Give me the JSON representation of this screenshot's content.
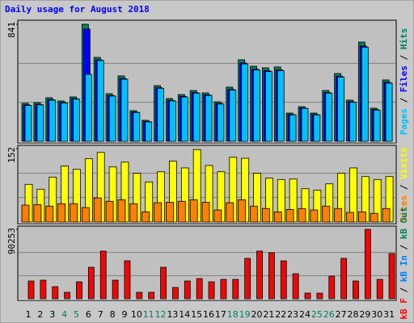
{
  "chart_data": {
    "type": "bar",
    "title": "Daily usage for August 2018",
    "legend_separator": " / ",
    "categories": [
      "1",
      "2",
      "3",
      "4",
      "5",
      "6",
      "7",
      "8",
      "9",
      "10",
      "11",
      "12",
      "13",
      "14",
      "15",
      "16",
      "17",
      "18",
      "19",
      "20",
      "21",
      "22",
      "23",
      "24",
      "25",
      "26",
      "27",
      "28",
      "29",
      "30",
      "31"
    ],
    "category_colors": [
      "#000000",
      "#000000",
      "#000000",
      "#00805c",
      "#00805c",
      "#000000",
      "#000000",
      "#000000",
      "#000000",
      "#000000",
      "#00805c",
      "#00805c",
      "#000000",
      "#000000",
      "#000000",
      "#000000",
      "#000000",
      "#00805c",
      "#00805c",
      "#000000",
      "#000000",
      "#000000",
      "#000000",
      "#000000",
      "#00805c",
      "#00805c",
      "#000000",
      "#000000",
      "#000000",
      "#000000",
      "#000000"
    ],
    "panels": [
      {
        "ylim": [
          0,
          841
        ],
        "yticks": [
          841
        ],
        "series": [
          {
            "name": "Pages",
            "color": "#00c0ff",
            "values": [
              258,
              262,
              296,
              275,
              303,
              481,
              580,
              325,
              446,
              207,
              140,
              380,
              290,
              318,
              346,
              330,
              268,
              368,
              556,
              512,
              501,
              507,
              190,
              236,
              190,
              346,
              462,
              280,
              676,
              224,
              418
            ]
          },
          {
            "name": "Files",
            "color": "#0000ff",
            "values": [
              262,
              266,
              300,
              279,
              307,
              806,
              585,
              329,
              452,
              210,
              143,
              385,
              294,
              323,
              350,
              334,
              272,
              373,
              563,
              518,
              507,
              513,
              193,
              239,
              193,
              350,
              468,
              284,
              685,
              228,
              424
            ]
          },
          {
            "name": "Hits",
            "color": "#00805c",
            "values": [
              273,
              278,
              313,
              290,
              319,
              841,
              603,
              342,
              470,
              220,
              151,
              400,
              307,
              336,
              365,
              348,
              284,
              389,
              586,
              539,
              528,
              534,
              203,
              249,
              203,
              365,
              487,
              296,
              713,
              238,
              441
            ]
          }
        ]
      },
      {
        "ylim": [
          0,
          152
        ],
        "yticks": [
          152
        ],
        "series": [
          {
            "name": "Sites",
            "color": "#ff8000",
            "values": [
              35,
              36,
              33,
              38,
              38,
              30,
              50,
              43,
              46,
              38,
              21,
              40,
              41,
              43,
              46,
              41,
              25,
              40,
              46,
              33,
              28,
              21,
              26,
              28,
              25,
              33,
              28,
              20,
              21,
              18,
              28
            ]
          },
          {
            "name": "Visits",
            "color": "#ffff00",
            "values": [
              78,
              68,
              93,
              116,
              109,
              131,
              144,
              114,
              124,
              101,
              83,
              104,
              126,
              112,
              150,
              117,
              104,
              134,
              132,
              101,
              91,
              88,
              89,
              69,
              66,
              79,
              101,
              112,
              94,
              88,
              94
            ]
          }
        ]
      },
      {
        "ylim": [
          0,
          90253
        ],
        "yticks": [
          90253
        ],
        "series": [
          {
            "name": "kB F",
            "color": "#ff0000",
            "values": [
              23088,
              24137,
              15742,
              8396,
              22039,
              40929,
              61917,
              24137,
              49325,
              8396,
              8396,
              40929,
              14692,
              23088,
              26236,
              22039,
              25187,
              25187,
              52473,
              61917,
              59818,
              49325,
              32533,
              7346,
              7346,
              29385,
              52473,
              23088,
              90253,
              25187,
              58769
            ]
          },
          {
            "name": "kB In",
            "color": "#0080ff"
          },
          {
            "name": "kB Out",
            "color": "#00805c"
          }
        ]
      }
    ]
  }
}
